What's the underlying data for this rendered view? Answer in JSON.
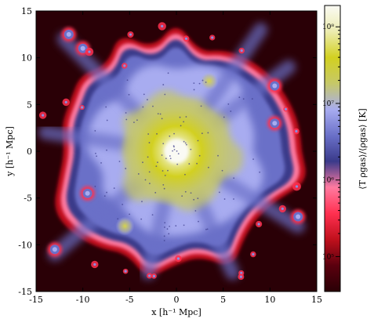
{
  "chart_data": {
    "type": "heatmap",
    "title": "",
    "xlabel": "x [h⁻¹ Mpc]",
    "ylabel": "y [h⁻¹ Mpc]",
    "colorbar_label": "⟨T ρgas⟩/⟨ρgas⟩ [K]",
    "xlim": [
      -15,
      15
    ],
    "ylim": [
      -15,
      15
    ],
    "xticks": [
      -15,
      -10,
      -5,
      0,
      5,
      10,
      15
    ],
    "yticks": [
      -15,
      -10,
      -5,
      0,
      5,
      10,
      15
    ],
    "colorbar": {
      "scale": "log",
      "range_K": [
        35000.0,
        190000000.0
      ],
      "ticks": [
        {
          "value": 100000,
          "label": "10⁵"
        },
        {
          "value": 1000000,
          "label": "10⁶"
        },
        {
          "value": 10000000,
          "label": "10⁷"
        },
        {
          "value": 100000000,
          "label": "10⁸"
        }
      ],
      "colors": [
        "#2a0006",
        "#5a000e",
        "#c0101c",
        "#ff3050",
        "#ff7aa0",
        "#3a3a8a",
        "#6a70c8",
        "#a8acf0",
        "#c6c868",
        "#d2d020",
        "#ececb0",
        "#fafaf4"
      ]
    },
    "structure": {
      "description_units": "h^-1 Mpc",
      "center": [
        0,
        0
      ],
      "center_temperature_K": 150000000.0,
      "background_temperature_K": 40000.0,
      "hot_region_radius": 6,
      "warm_halo_radius": 10,
      "subclumps": [
        {
          "x": 3.5,
          "y": 7.5
        },
        {
          "x": 10.5,
          "y": 7.0
        },
        {
          "x": 10.5,
          "y": 3.0
        },
        {
          "x": -9.5,
          "y": -4.5
        },
        {
          "x": -5.5,
          "y": -8.0
        },
        {
          "x": -11.5,
          "y": 12.5
        },
        {
          "x": -10.0,
          "y": 11.0
        },
        {
          "x": -13.0,
          "y": -10.5
        },
        {
          "x": 13.0,
          "y": -7.0
        }
      ]
    }
  }
}
